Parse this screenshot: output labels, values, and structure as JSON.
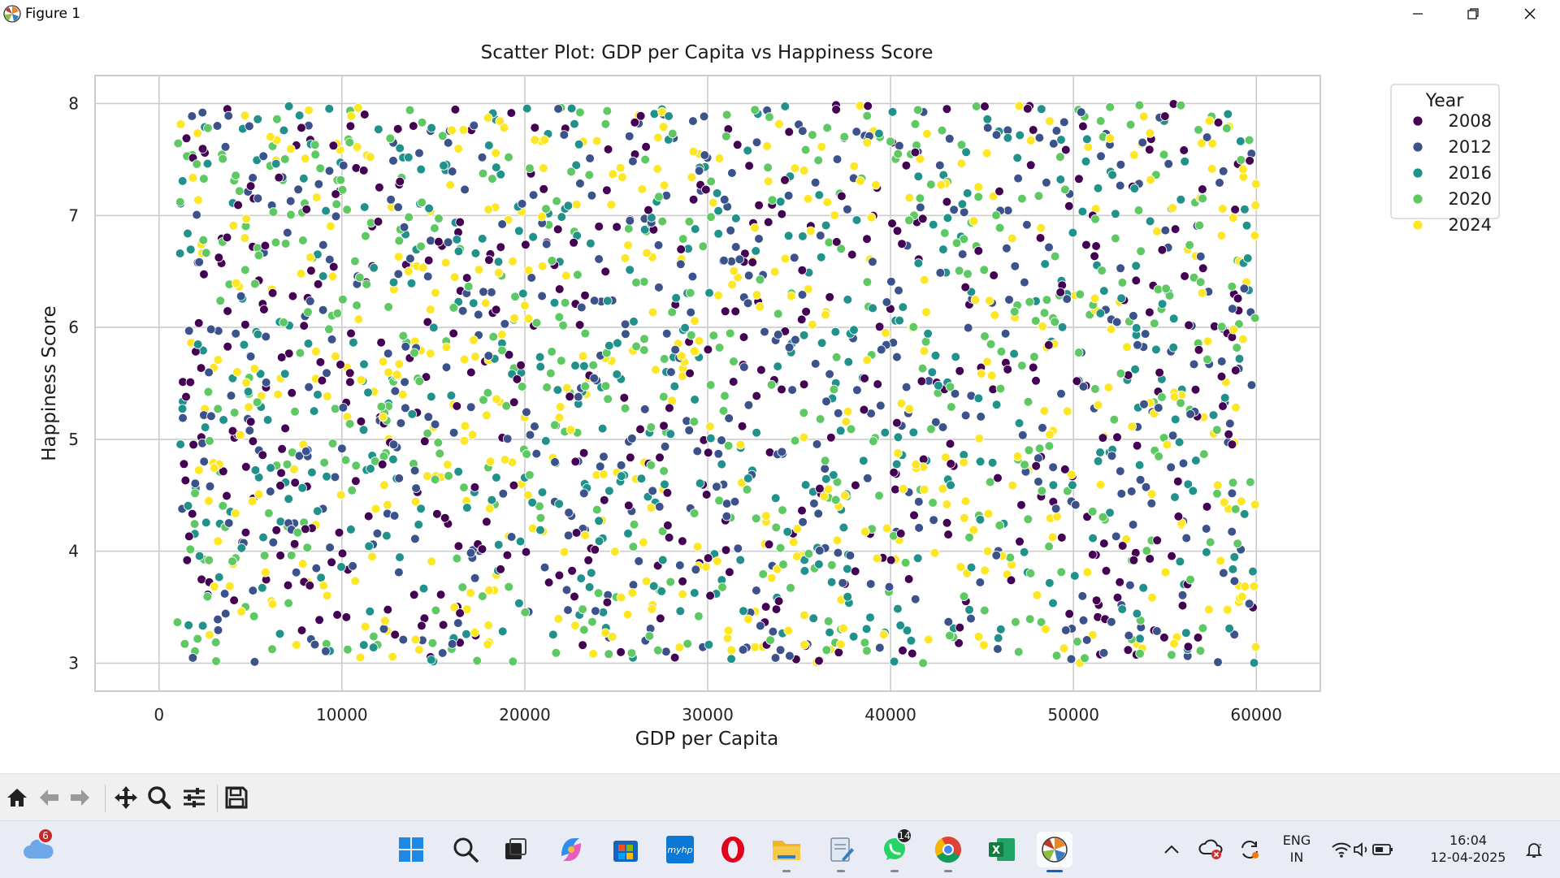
{
  "window": {
    "title": "Figure 1"
  },
  "chart_data": {
    "type": "scatter",
    "title": "Scatter Plot: GDP per Capita vs Happiness Score",
    "xlabel": "GDP per Capita",
    "ylabel": "Happiness Score",
    "xlim": [
      -3500,
      63500
    ],
    "ylim": [
      2.75,
      8.25
    ],
    "xticks": [
      0,
      10000,
      20000,
      30000,
      40000,
      50000,
      60000
    ],
    "yticks": [
      3,
      4,
      5,
      6,
      7,
      8
    ],
    "grid": true,
    "legend": {
      "title": "Year",
      "placement": "outside-top-right"
    },
    "series": [
      {
        "name": "2008",
        "color": "#440154"
      },
      {
        "name": "2012",
        "color": "#3b528b"
      },
      {
        "name": "2016",
        "color": "#21918c"
      },
      {
        "name": "2020",
        "color": "#5ec962"
      },
      {
        "name": "2024",
        "color": "#fde725"
      }
    ],
    "x_range": [
      1000,
      60000
    ],
    "y_range": [
      3.0,
      8.0
    ],
    "point_count": 2400
  },
  "toolbar": {
    "items": [
      {
        "name": "home-button",
        "icon": "home-icon"
      },
      {
        "name": "back-button",
        "icon": "arrow-left-icon"
      },
      {
        "name": "forward-button",
        "icon": "arrow-right-icon"
      },
      {
        "name": "pan-button",
        "icon": "move-icon"
      },
      {
        "name": "zoom-button",
        "icon": "magnifier-icon"
      },
      {
        "name": "configure-subplots-button",
        "icon": "sliders-icon"
      },
      {
        "name": "save-button",
        "icon": "floppy-disk-icon"
      }
    ]
  },
  "taskbar": {
    "weather_badge": "6",
    "whatsapp_badge": "14",
    "apps": [
      "start",
      "search",
      "task-view",
      "copilot",
      "microsoft-store",
      "myhp",
      "opera",
      "file-explorer",
      "notepad",
      "whatsapp",
      "chrome",
      "excel",
      "python-figure"
    ],
    "language_top": "ENG",
    "language_bottom": "IN",
    "time": "16:04",
    "date": "12-04-2025"
  }
}
